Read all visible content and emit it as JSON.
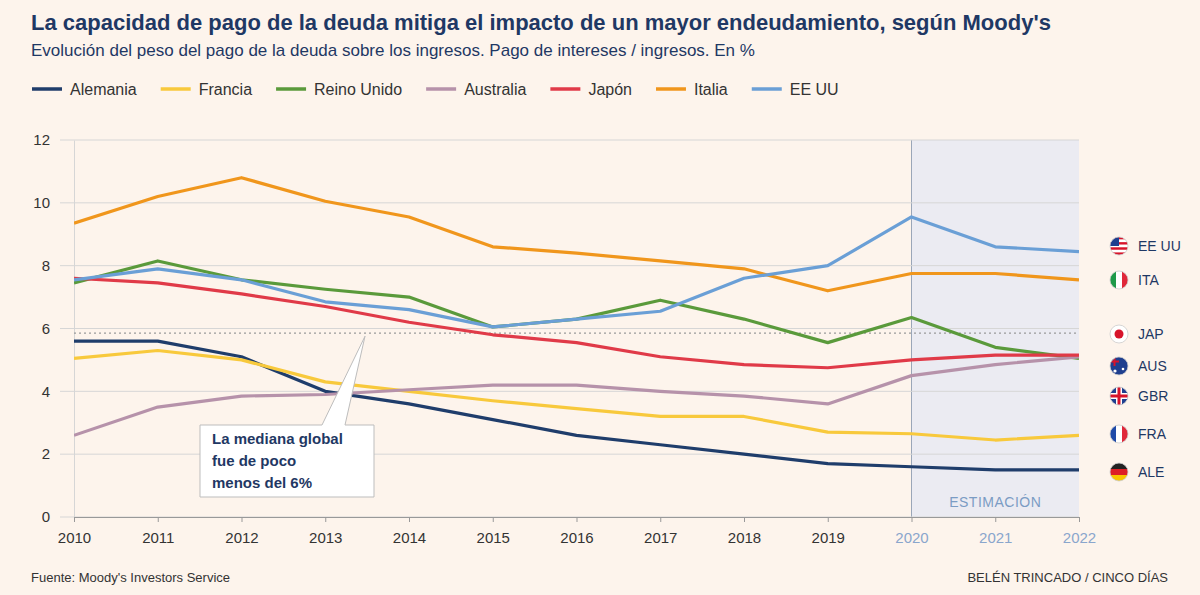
{
  "chart_data": {
    "type": "line",
    "title": "La capacidad de pago de la deuda mitiga el impacto de un mayor endeudamiento, según Moody's",
    "subtitle": "Evolución del peso del pago de la deuda sobre los ingresos. Pago de intereses / ingresos. En %",
    "x": [
      2010,
      2011,
      2012,
      2013,
      2014,
      2015,
      2016,
      2017,
      2018,
      2019,
      2020,
      2021,
      2022
    ],
    "xlim": [
      2010,
      2022
    ],
    "xticks": [
      2010,
      2011,
      2012,
      2013,
      2014,
      2015,
      2016,
      2017,
      2018,
      2019,
      2020,
      2021,
      2022
    ],
    "ylim": [
      0,
      12
    ],
    "yticks": [
      0,
      2,
      4,
      6,
      8,
      10,
      12
    ],
    "grid": true,
    "legend": "top",
    "series": [
      {
        "name": "Alemania",
        "code": "ALE",
        "color": "#1f3d6b",
        "values": [
          5.6,
          5.6,
          5.1,
          4.0,
          3.6,
          3.1,
          2.6,
          2.3,
          2.0,
          1.7,
          1.6,
          1.5,
          1.5
        ]
      },
      {
        "name": "Francia",
        "code": "FRA",
        "color": "#f8c93c",
        "values": [
          5.05,
          5.3,
          5.0,
          4.3,
          4.0,
          3.7,
          3.45,
          3.2,
          3.2,
          2.7,
          2.65,
          2.45,
          2.6
        ]
      },
      {
        "name": "Reino Unido",
        "code": "GBR",
        "color": "#5a9a3b",
        "values": [
          7.45,
          8.15,
          7.55,
          7.25,
          7.0,
          6.05,
          6.3,
          6.9,
          6.3,
          5.55,
          6.35,
          5.4,
          5.05
        ]
      },
      {
        "name": "Australia",
        "code": "AUS",
        "color": "#b692aa",
        "values": [
          2.6,
          3.5,
          3.85,
          3.9,
          4.05,
          4.2,
          4.2,
          4.0,
          3.85,
          3.6,
          4.5,
          4.85,
          5.1
        ]
      },
      {
        "name": "Japón",
        "code": "JAP",
        "color": "#e03a48",
        "values": [
          7.6,
          7.45,
          7.1,
          6.7,
          6.2,
          5.8,
          5.55,
          5.1,
          4.85,
          4.75,
          5.0,
          5.15,
          5.15
        ]
      },
      {
        "name": "Italia",
        "code": "ITA",
        "color": "#f0961c",
        "values": [
          9.35,
          10.2,
          10.8,
          10.05,
          9.55,
          8.6,
          8.4,
          8.15,
          7.9,
          7.2,
          7.75,
          7.75,
          7.55
        ]
      },
      {
        "name": "EE UU",
        "code": "EE UU",
        "color": "#6a9fd6",
        "values": [
          7.55,
          7.9,
          7.55,
          6.85,
          6.6,
          6.05,
          6.3,
          6.55,
          7.6,
          8.0,
          9.55,
          8.6,
          8.45
        ]
      }
    ],
    "annotations": [
      {
        "text_lines": [
          "La mediana global",
          "fue de poco",
          "menos del 6%"
        ],
        "value": 5.85
      }
    ],
    "shaded_region": {
      "x": [
        2020,
        2022
      ],
      "label": "ESTIMACIÓN"
    },
    "source": "Fuente: Moody's Investors Service",
    "credit": "BELÉN TRINCADO / CINCO DÍAS"
  }
}
